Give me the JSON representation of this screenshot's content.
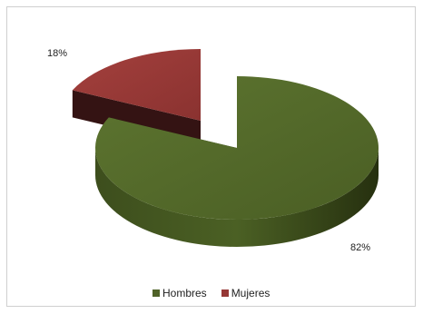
{
  "chart_data": {
    "type": "pie",
    "style": "3d-exploded",
    "title": "",
    "slices": [
      {
        "name": "Hombres",
        "value": 82,
        "label": "82%",
        "color": "#4f6228"
      },
      {
        "name": "Mujeres",
        "value": 18,
        "label": "18%",
        "color": "#953735"
      }
    ],
    "legend_position": "bottom"
  }
}
